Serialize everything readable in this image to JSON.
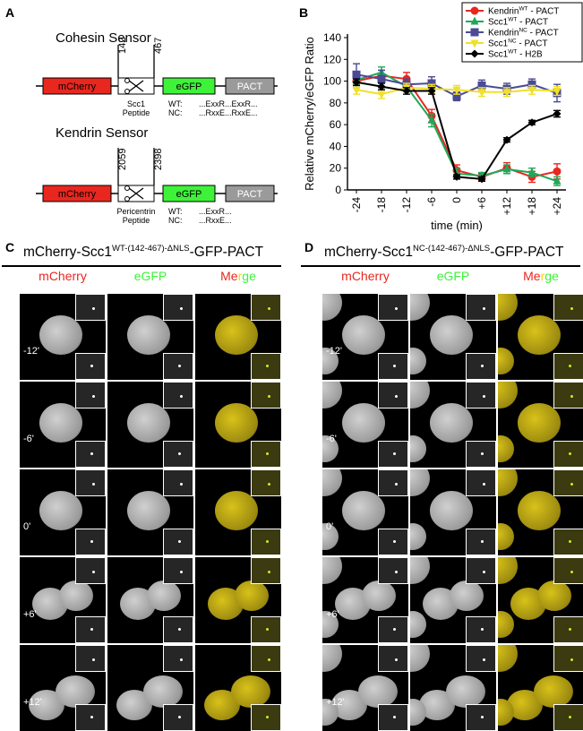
{
  "panel_labels": {
    "a": "A",
    "b": "B",
    "c": "C",
    "d": "D"
  },
  "panel_a": {
    "cohesin": {
      "title": "Cohesin Sensor",
      "pos_start": "142",
      "pos_end": "467",
      "box_mcherry": "mCherry",
      "box_egfp": "eGFP",
      "box_pact": "PACT",
      "peptide_line1": "Scc1",
      "peptide_line2": "Peptide",
      "wt_label": "WT:",
      "nc_label": "NC:",
      "wt_seq": "...ExxR...ExxR...",
      "nc_seq": "...RxxE...RxxE..."
    },
    "kendrin": {
      "title": "Kendrin Sensor",
      "pos_start": "2059",
      "pos_end": "2398",
      "box_mcherry": "mCherry",
      "box_egfp": "eGFP",
      "box_pact": "PACT",
      "peptide_line1": "Pericentrin",
      "peptide_line2": "Peptide",
      "wt_label": "WT:",
      "nc_label": "NC:",
      "wt_seq": "...ExxR...",
      "nc_seq": "...RxxE..."
    },
    "colors": {
      "mcherry": "#e8271f",
      "egfp": "#3ef23a",
      "pact": "#9a9a9a"
    }
  },
  "chart_data": {
    "type": "line",
    "xlabel": "time (min)",
    "ylabel": "Relative mCherry/eGFP Ratio",
    "categories": [
      "-24",
      "-18",
      "-12",
      "-6",
      "0",
      "+6",
      "+12",
      "+18",
      "+24"
    ],
    "x": [
      -24,
      -18,
      -12,
      -6,
      0,
      6,
      12,
      18,
      24
    ],
    "ylim": [
      0,
      140
    ],
    "yticks": [
      0,
      20,
      40,
      60,
      80,
      100,
      120,
      140
    ],
    "grid": false,
    "legend_placement": "top-right",
    "series": [
      {
        "name": "Kendrin",
        "sup": "WT",
        "suffix": " - PACT",
        "color": "#e8271f",
        "marker": "circle",
        "values": [
          100,
          105,
          102,
          68,
          18,
          12,
          20,
          12,
          17
        ],
        "errors": [
          6,
          5,
          6,
          6,
          5,
          3,
          5,
          5,
          7
        ]
      },
      {
        "name": "Scc1",
        "sup": "WT",
        "suffix": " - PACT",
        "color": "#1fa85a",
        "marker": "triangle",
        "values": [
          101,
          108,
          95,
          64,
          15,
          13,
          19,
          16,
          8
        ],
        "errors": [
          4,
          5,
          4,
          6,
          5,
          3,
          4,
          4,
          4
        ]
      },
      {
        "name": "Kendrin",
        "sup": "NC",
        "suffix": " - PACT",
        "color": "#4a4a96",
        "marker": "square",
        "values": [
          106,
          102,
          97,
          98,
          86,
          96,
          93,
          97,
          89
        ],
        "errors": [
          10,
          8,
          5,
          6,
          4,
          5,
          5,
          5,
          8
        ]
      },
      {
        "name": "Scc1",
        "sup": "NC",
        "suffix": " - PACT",
        "color": "#f0e02a",
        "marker": "triangle-down",
        "values": [
          92,
          88,
          94,
          93,
          92,
          90,
          90,
          92,
          91
        ],
        "errors": [
          4,
          4,
          4,
          4,
          4,
          4,
          4,
          4,
          4
        ]
      },
      {
        "name": "Scc1",
        "sup": "WT",
        "suffix": " - H2B",
        "color": "#000000",
        "marker": "diamond",
        "values": [
          99,
          95,
          91,
          91,
          12,
          10,
          46,
          62,
          70
        ],
        "errors": [
          3,
          3,
          3,
          3,
          2,
          2,
          2,
          2,
          3
        ]
      }
    ]
  },
  "panel_c": {
    "title_main": "mCherry-Scc1",
    "title_sup": "WT-(142-467)-ΔNLS",
    "title_suffix": "-GFP-PACT",
    "channels": [
      "mCherry",
      "eGFP",
      "Merge"
    ],
    "times": [
      "-12'",
      "-6'",
      "0'",
      "+6'",
      "+12'"
    ]
  },
  "panel_d": {
    "title_main": "mCherry-Scc1",
    "title_sup": "NC-(142-467)-ΔNLS",
    "title_suffix": "-GFP-PACT",
    "channels": [
      "mCherry",
      "eGFP",
      "Merge"
    ],
    "times": [
      "-12'",
      "-6'",
      "0'",
      "+6'",
      "+12'"
    ]
  },
  "channel_colors": {
    "mcherry": "#e8271f",
    "egfp": "#3ef23a",
    "merge_r": "#e8271f",
    "merge_y": "#ffd400",
    "merge_g": "#3ef23a"
  }
}
